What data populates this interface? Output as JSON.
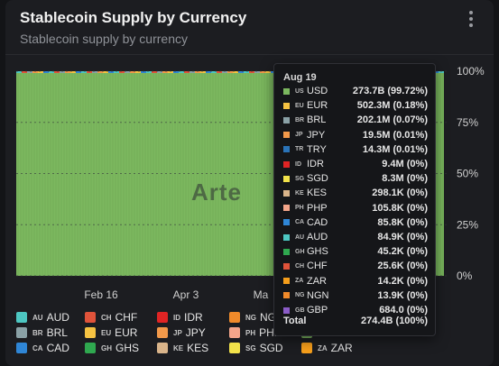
{
  "card": {
    "title": "Stablecoin Supply by Currency",
    "subtitle": "Stablecoin supply by currency",
    "menu_icon": "kebab-menu-icon",
    "watermark": "Arte"
  },
  "chart_data": {
    "type": "area",
    "stacking": "percent",
    "x_tick_labels": [
      "Feb 16",
      "Apr 3",
      "Ma"
    ],
    "y_tick_labels": [
      "100%",
      "75%",
      "50%",
      "25%",
      "0%"
    ],
    "ylim": [
      0,
      100
    ],
    "legend_position": "bottom",
    "grid": true
  },
  "tooltip": {
    "date": "Aug 19",
    "rows": [
      {
        "cc": "US",
        "name": "USD",
        "value": "273.7B (99.72%)",
        "color": "#7cb85f"
      },
      {
        "cc": "EU",
        "name": "EUR",
        "value": "502.3M (0.18%)",
        "color": "#f5c242"
      },
      {
        "cc": "BR",
        "name": "BRL",
        "value": "202.1M (0.07%)",
        "color": "#8aa1a6"
      },
      {
        "cc": "JP",
        "name": "JPY",
        "value": "19.5M (0.01%)",
        "color": "#f2994a"
      },
      {
        "cc": "TR",
        "name": "TRY",
        "value": "14.3M (0.01%)",
        "color": "#2a73b8"
      },
      {
        "cc": "ID",
        "name": "IDR",
        "value": "9.4M (0%)",
        "color": "#e02424"
      },
      {
        "cc": "SG",
        "name": "SGD",
        "value": "8.3M (0%)",
        "color": "#f2e24a"
      },
      {
        "cc": "KE",
        "name": "KES",
        "value": "298.1K (0%)",
        "color": "#d9b48a"
      },
      {
        "cc": "PH",
        "name": "PHP",
        "value": "105.8K (0%)",
        "color": "#f4a58a"
      },
      {
        "cc": "CA",
        "name": "CAD",
        "value": "85.8K (0%)",
        "color": "#2f86d6"
      },
      {
        "cc": "AU",
        "name": "AUD",
        "value": "84.9K (0%)",
        "color": "#4dc7c2"
      },
      {
        "cc": "GH",
        "name": "GHS",
        "value": "45.2K (0%)",
        "color": "#2fa84f"
      },
      {
        "cc": "CH",
        "name": "CHF",
        "value": "25.6K (0%)",
        "color": "#e0533a"
      },
      {
        "cc": "ZA",
        "name": "ZAR",
        "value": "14.2K (0%)",
        "color": "#f59e1b"
      },
      {
        "cc": "NG",
        "name": "NGN",
        "value": "13.9K (0%)",
        "color": "#f08a2a"
      },
      {
        "cc": "GB",
        "name": "GBP",
        "value": "684.0 (0%)",
        "color": "#8b5cc7"
      }
    ],
    "total_label": "Total",
    "total_value": "274.4B (100%)"
  },
  "legend": {
    "items": [
      {
        "cc": "AU",
        "name": "AUD",
        "color": "#4dc7c2"
      },
      {
        "cc": "BR",
        "name": "BRL",
        "color": "#8aa1a6"
      },
      {
        "cc": "CA",
        "name": "CAD",
        "color": "#2f86d6"
      },
      {
        "cc": "CH",
        "name": "CHF",
        "color": "#e0533a"
      },
      {
        "cc": "EU",
        "name": "EUR",
        "color": "#f5c242"
      },
      {
        "cc": "GH",
        "name": "GHS",
        "color": "#2fa84f"
      },
      {
        "cc": "ID",
        "name": "IDR",
        "color": "#e02424"
      },
      {
        "cc": "JP",
        "name": "JPY",
        "color": "#f2994a"
      },
      {
        "cc": "KE",
        "name": "KES",
        "color": "#d9b48a"
      },
      {
        "cc": "NG",
        "name": "NGN",
        "color": "#f08a2a"
      },
      {
        "cc": "PH",
        "name": "PHP",
        "color": "#f4a58a"
      },
      {
        "cc": "SG",
        "name": "SGD",
        "color": "#f2e24a"
      },
      {
        "cc": "TR",
        "name": "TRY",
        "color": "#2a73b8"
      },
      {
        "cc": "US",
        "name": "USD",
        "color": "#7cb85f"
      },
      {
        "cc": "ZA",
        "name": "ZAR",
        "color": "#f59e1b"
      }
    ]
  },
  "colors": {
    "background": "#131417",
    "card": "#1c1d21",
    "usd_area": "#7cb85f",
    "grid": "#34363b"
  }
}
